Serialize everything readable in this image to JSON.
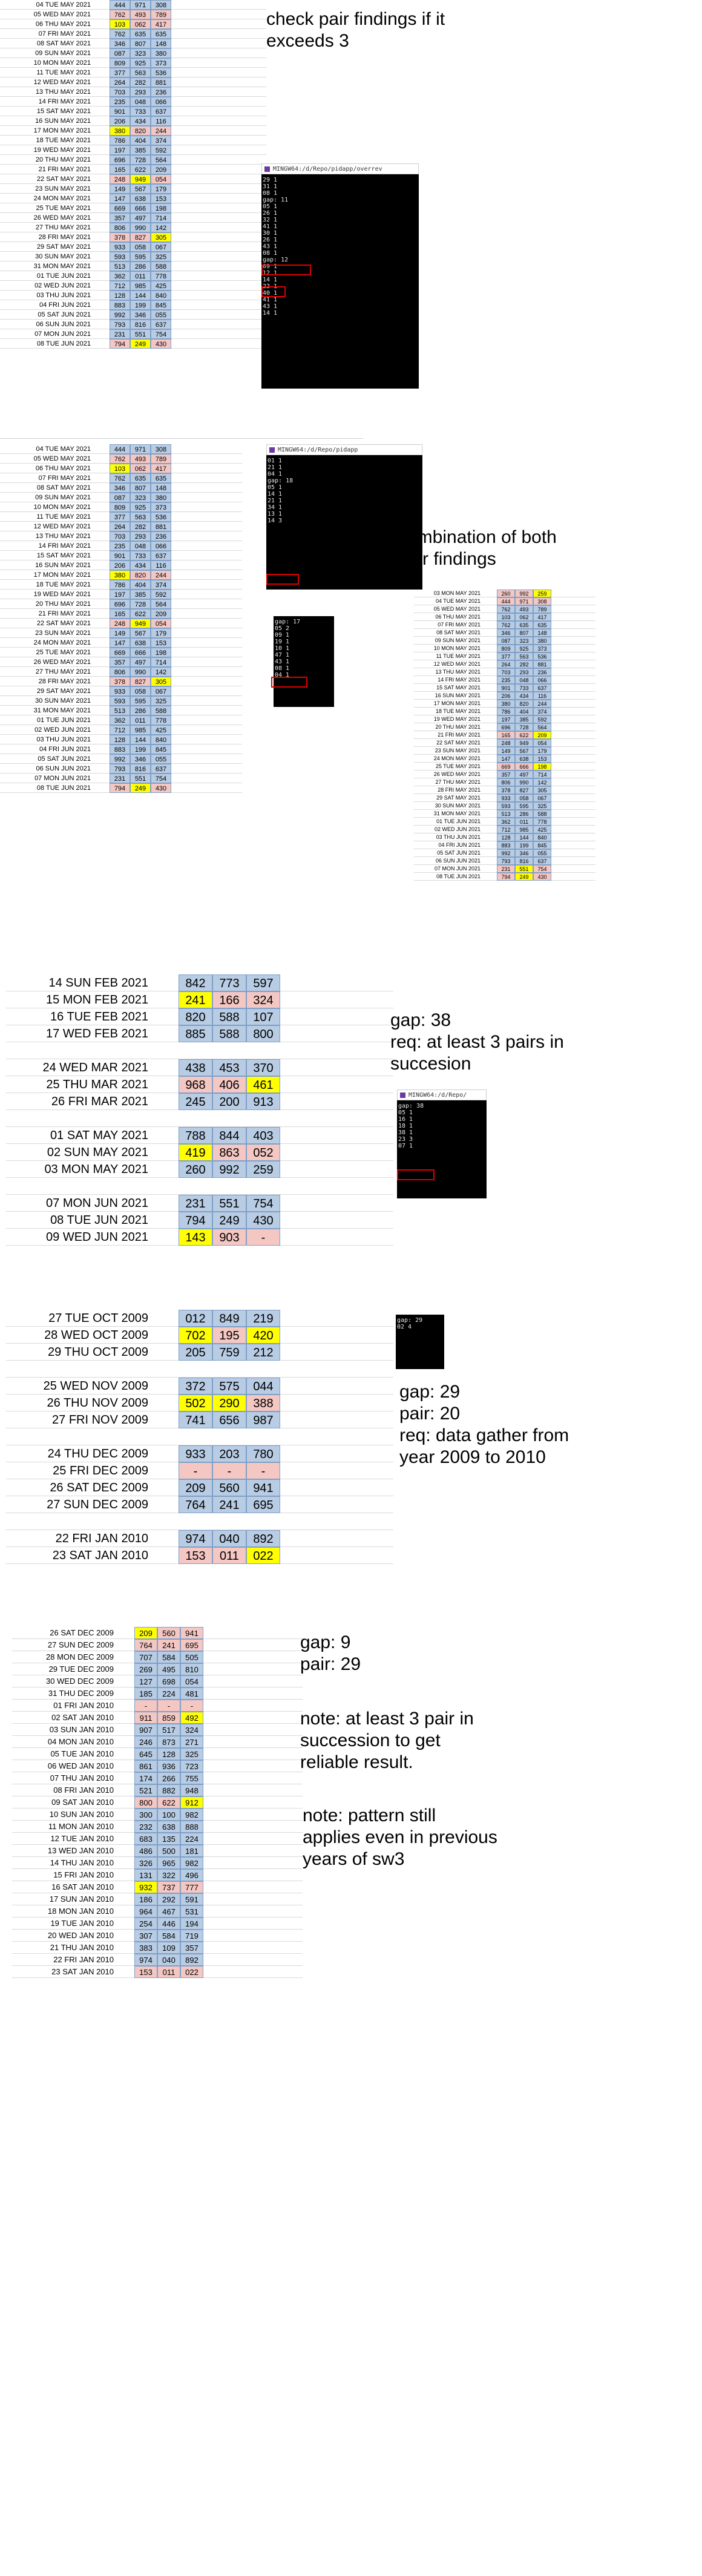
{
  "notes": {
    "n1": "check pair findings if it\nexceeds 3",
    "n2": "combination of both\npair findings",
    "n3": "gap: 38\nreq: at least 3 pairs in\nsuccesion",
    "n4": "gap: 29\npair: 20\nreq: data gather from\nyear 2009 to 2010",
    "n5": "gap: 9\npair: 29",
    "n6": "note: at least 3 pair in\nsuccession to get\nreliable result.",
    "n7": "note: pattern still\napplies even in previous\nyears of sw3"
  },
  "terminals": {
    "t1": {
      "title": "MINGW64:/d/Repo/pidapp/overrev",
      "lines": [
        "29 1",
        "31 1",
        "08 1",
        "",
        "",
        "gap: 11",
        "05 1",
        "26 1",
        "32 1",
        "41 1",
        "30 1",
        "26 1",
        "",
        "",
        "43 1",
        "08 1",
        "",
        "gap: 12",
        "09 1",
        "12 1",
        "14 1",
        "22 1",
        "40 1",
        "41 1",
        "43 1",
        "14 1"
      ]
    },
    "t2": {
      "title": "MINGW64:/d/Repo/pidapp",
      "lines": [
        "01 1",
        "21 1",
        "04 1",
        "",
        "",
        "",
        "gap: 18",
        "05 1",
        "14 1",
        "21 1",
        "34 1",
        "13 1",
        "14 3"
      ]
    },
    "t3": {
      "title": "",
      "lines": [
        "gap: 17",
        "05 2",
        "09 1",
        "19 1",
        "10 1",
        "47 1",
        "43 1",
        "08 1",
        "04 1"
      ]
    },
    "t4": {
      "title": "MINGW64:/d/Repo/",
      "lines": [
        "gap: 38",
        "05 1",
        "16 1",
        "18 1",
        "38 1",
        "23 3",
        "07 1"
      ]
    },
    "t5": {
      "title": "",
      "lines": [
        "gap: 29",
        "02 4"
      ]
    }
  },
  "tables": {
    "A": [
      [
        "04 TUE MAY 2021",
        "444",
        "971",
        "308"
      ],
      [
        "05 WED MAY 2021",
        "762",
        "493",
        "789"
      ],
      [
        "06 THU MAY 2021",
        "103",
        "062",
        "417"
      ],
      [
        "07 FRI MAY 2021",
        "762",
        "635",
        "635"
      ],
      [
        "08 SAT MAY 2021",
        "346",
        "807",
        "148"
      ],
      [
        "09 SUN MAY 2021",
        "087",
        "323",
        "380"
      ],
      [
        "10 MON MAY 2021",
        "809",
        "925",
        "373"
      ],
      [
        "11 TUE MAY 2021",
        "377",
        "563",
        "536"
      ],
      [
        "12 WED MAY 2021",
        "264",
        "282",
        "881"
      ],
      [
        "13 THU MAY 2021",
        "703",
        "293",
        "236"
      ],
      [
        "14 FRI MAY 2021",
        "235",
        "048",
        "066"
      ],
      [
        "15 SAT MAY 2021",
        "901",
        "733",
        "637"
      ],
      [
        "16 SUN MAY 2021",
        "206",
        "434",
        "116"
      ],
      [
        "17 MON MAY 2021",
        "380",
        "820",
        "244"
      ],
      [
        "18 TUE MAY 2021",
        "786",
        "404",
        "374"
      ],
      [
        "19 WED MAY 2021",
        "197",
        "385",
        "592"
      ],
      [
        "20 THU MAY 2021",
        "696",
        "728",
        "564"
      ],
      [
        "21 FRI MAY 2021",
        "165",
        "622",
        "209"
      ],
      [
        "22 SAT MAY 2021",
        "248",
        "949",
        "054"
      ],
      [
        "23 SUN MAY 2021",
        "149",
        "567",
        "179"
      ],
      [
        "24 MON MAY 2021",
        "147",
        "638",
        "153"
      ],
      [
        "25 TUE MAY 2021",
        "669",
        "666",
        "198"
      ],
      [
        "26 WED MAY 2021",
        "357",
        "497",
        "714"
      ],
      [
        "27 THU MAY 2021",
        "806",
        "990",
        "142"
      ],
      [
        "28 FRI MAY 2021",
        "378",
        "827",
        "305"
      ],
      [
        "29 SAT MAY 2021",
        "933",
        "058",
        "067"
      ],
      [
        "30 SUN MAY 2021",
        "593",
        "595",
        "325"
      ],
      [
        "31 MON MAY 2021",
        "513",
        "286",
        "588"
      ],
      [
        "01 TUE JUN 2021",
        "362",
        "011",
        "778"
      ],
      [
        "02 WED JUN 2021",
        "712",
        "985",
        "425"
      ],
      [
        "03 THU JUN 2021",
        "128",
        "144",
        "840"
      ],
      [
        "04 FRI JUN 2021",
        "883",
        "199",
        "845"
      ],
      [
        "05 SAT JUN 2021",
        "992",
        "346",
        "055"
      ],
      [
        "06 SUN JUN 2021",
        "793",
        "816",
        "637"
      ],
      [
        "07 MON JUN 2021",
        "231",
        "551",
        "754"
      ],
      [
        "08 TUE JUN 2021",
        "794",
        "249",
        "430"
      ]
    ],
    "C": [
      [
        "03 MON MAY 2021",
        "260",
        "992",
        "259"
      ],
      [
        "04 TUE MAY 2021",
        "444",
        "971",
        "308"
      ],
      [
        "05 WED MAY 2021",
        "762",
        "493",
        "789"
      ],
      [
        "06 THU MAY 2021",
        "103",
        "062",
        "417"
      ],
      [
        "07 FRI MAY 2021",
        "762",
        "635",
        "635"
      ],
      [
        "08 SAT MAY 2021",
        "346",
        "807",
        "148"
      ],
      [
        "09 SUN MAY 2021",
        "087",
        "323",
        "380"
      ],
      [
        "10 MON MAY 2021",
        "809",
        "925",
        "373"
      ],
      [
        "11 TUE MAY 2021",
        "377",
        "563",
        "536"
      ],
      [
        "12 WED MAY 2021",
        "264",
        "282",
        "881"
      ],
      [
        "13 THU MAY 2021",
        "703",
        "293",
        "236"
      ],
      [
        "14 FRI MAY 2021",
        "235",
        "048",
        "066"
      ],
      [
        "15 SAT MAY 2021",
        "901",
        "733",
        "637"
      ],
      [
        "16 SUN MAY 2021",
        "206",
        "434",
        "116"
      ],
      [
        "17 MON MAY 2021",
        "380",
        "820",
        "244"
      ],
      [
        "18 TUE MAY 2021",
        "786",
        "404",
        "374"
      ],
      [
        "19 WED MAY 2021",
        "197",
        "385",
        "592"
      ],
      [
        "20 THU MAY 2021",
        "696",
        "728",
        "564"
      ],
      [
        "21 FRI MAY 2021",
        "165",
        "622",
        "209"
      ],
      [
        "22 SAT MAY 2021",
        "248",
        "949",
        "054"
      ],
      [
        "23 SUN MAY 2021",
        "149",
        "567",
        "179"
      ],
      [
        "24 MON MAY 2021",
        "147",
        "638",
        "153"
      ],
      [
        "25 TUE MAY 2021",
        "669",
        "666",
        "198"
      ],
      [
        "26 WED MAY 2021",
        "357",
        "497",
        "714"
      ],
      [
        "27 THU MAY 2021",
        "806",
        "990",
        "142"
      ],
      [
        "28 FRI MAY 2021",
        "378",
        "827",
        "305"
      ],
      [
        "29 SAT MAY 2021",
        "933",
        "058",
        "067"
      ],
      [
        "30 SUN MAY 2021",
        "593",
        "595",
        "325"
      ],
      [
        "31 MON MAY 2021",
        "513",
        "286",
        "588"
      ],
      [
        "01 TUE JUN 2021",
        "362",
        "011",
        "778"
      ],
      [
        "02 WED JUN 2021",
        "712",
        "985",
        "425"
      ],
      [
        "03 THU JUN 2021",
        "128",
        "144",
        "840"
      ],
      [
        "04 FRI JUN 2021",
        "883",
        "199",
        "845"
      ],
      [
        "05 SAT JUN 2021",
        "992",
        "346",
        "055"
      ],
      [
        "06 SUN JUN 2021",
        "793",
        "816",
        "637"
      ],
      [
        "07 MON JUN 2021",
        "231",
        "551",
        "754"
      ],
      [
        "08 TUE JUN 2021",
        "794",
        "249",
        "430"
      ]
    ],
    "D": [
      [
        "14 SUN FEB 2021",
        "842",
        "773",
        "597"
      ],
      [
        "15 MON FEB 2021",
        "241",
        "166",
        "324"
      ],
      [
        "16 TUE FEB 2021",
        "820",
        "588",
        "107"
      ],
      [
        "17 WED FEB 2021",
        "885",
        "588",
        "800"
      ],
      [
        "",
        null,
        null,
        null
      ],
      [
        "24 WED MAR 2021",
        "438",
        "453",
        "370"
      ],
      [
        "25 THU MAR 2021",
        "968",
        "406",
        "461"
      ],
      [
        "26 FRI MAR 2021",
        "245",
        "200",
        "913"
      ],
      [
        "",
        null,
        null,
        null
      ],
      [
        "01 SAT MAY 2021",
        "788",
        "844",
        "403"
      ],
      [
        "02 SUN MAY 2021",
        "419",
        "863",
        "052"
      ],
      [
        "03 MON MAY 2021",
        "260",
        "992",
        "259"
      ],
      [
        "",
        null,
        null,
        null
      ],
      [
        "07 MON JUN 2021",
        "231",
        "551",
        "754"
      ],
      [
        "08 TUE JUN 2021",
        "794",
        "249",
        "430"
      ],
      [
        "09 WED JUN 2021",
        "143",
        "903",
        "-"
      ]
    ],
    "E": [
      [
        "27 TUE OCT 2009",
        "012",
        "849",
        "219"
      ],
      [
        "28 WED OCT 2009",
        "702",
        "195",
        "420"
      ],
      [
        "29 THU OCT 2009",
        "205",
        "759",
        "212"
      ],
      [
        "",
        null,
        null,
        null
      ],
      [
        "25 WED NOV 2009",
        "372",
        "575",
        "044"
      ],
      [
        "26 THU NOV 2009",
        "502",
        "290",
        "388"
      ],
      [
        "27 FRI NOV 2009",
        "741",
        "656",
        "987"
      ],
      [
        "",
        null,
        null,
        null
      ],
      [
        "24 THU DEC 2009",
        "933",
        "203",
        "780"
      ],
      [
        "25 FRI DEC 2009",
        "-",
        "-",
        "-"
      ],
      [
        "26 SAT DEC 2009",
        "209",
        "560",
        "941"
      ],
      [
        "27 SUN DEC 2009",
        "764",
        "241",
        "695"
      ],
      [
        "",
        null,
        null,
        null
      ],
      [
        "22 FRI JAN 2010",
        "974",
        "040",
        "892"
      ],
      [
        "23 SAT JAN 2010",
        "153",
        "011",
        "022"
      ]
    ],
    "F": [
      [
        "26 SAT DEC 2009",
        "209",
        "560",
        "941"
      ],
      [
        "27 SUN DEC 2009",
        "764",
        "241",
        "695"
      ],
      [
        "28 MON DEC 2009",
        "707",
        "584",
        "505"
      ],
      [
        "29 TUE DEC 2009",
        "269",
        "495",
        "810"
      ],
      [
        "30 WED DEC 2009",
        "127",
        "698",
        "054"
      ],
      [
        "31 THU DEC 2009",
        "185",
        "224",
        "481"
      ],
      [
        "01 FRI JAN 2010",
        "-",
        "-",
        "-"
      ],
      [
        "02 SAT JAN 2010",
        "911",
        "859",
        "492"
      ],
      [
        "03 SUN JAN 2010",
        "907",
        "517",
        "324"
      ],
      [
        "04 MON JAN 2010",
        "246",
        "873",
        "271"
      ],
      [
        "05 TUE JAN 2010",
        "645",
        "128",
        "325"
      ],
      [
        "06 WED JAN 2010",
        "861",
        "936",
        "723"
      ],
      [
        "07 THU JAN 2010",
        "174",
        "266",
        "755"
      ],
      [
        "08 FRI JAN 2010",
        "521",
        "882",
        "948"
      ],
      [
        "09 SAT JAN 2010",
        "800",
        "622",
        "912"
      ],
      [
        "10 SUN JAN 2010",
        "300",
        "100",
        "982"
      ],
      [
        "11 MON JAN 2010",
        "232",
        "638",
        "888"
      ],
      [
        "12 TUE JAN 2010",
        "683",
        "135",
        "224"
      ],
      [
        "13 WED JAN 2010",
        "486",
        "500",
        "181"
      ],
      [
        "14 THU JAN 2010",
        "326",
        "965",
        "982"
      ],
      [
        "15 FRI JAN 2010",
        "131",
        "322",
        "496"
      ],
      [
        "16 SAT JAN 2010",
        "932",
        "737",
        "777"
      ],
      [
        "17 SUN JAN 2010",
        "186",
        "292",
        "591"
      ],
      [
        "18 MON JAN 2010",
        "964",
        "467",
        "531"
      ],
      [
        "19 TUE JAN 2010",
        "254",
        "446",
        "194"
      ],
      [
        "20 WED JAN 2010",
        "307",
        "584",
        "719"
      ],
      [
        "21 THU JAN 2010",
        "383",
        "109",
        "357"
      ],
      [
        "22 FRI JAN 2010",
        "974",
        "040",
        "892"
      ],
      [
        "23 SAT JAN 2010",
        "153",
        "011",
        "022"
      ]
    ]
  },
  "highlights": {
    "A": {
      "2-1": "y",
      "2-2": "p",
      "2-3": "p",
      "1-1": "p",
      "1-2": "p",
      "1-3": "p",
      "13-1": "y",
      "13-2": "p",
      "13-3": "p",
      "18-1": "p",
      "18-2": "y",
      "18-3": "p",
      "24-1": "p",
      "24-2": "p",
      "24-3": "y",
      "35-1": "p",
      "35-2": "y",
      "35-3": "p"
    },
    "C": {
      "0-1": "p",
      "0-2": "p",
      "0-3": "y",
      "1-1": "p",
      "1-2": "p",
      "1-3": "p",
      "18-1": "p",
      "18-2": "p",
      "18-3": "y",
      "35-1": "p",
      "35-2": "y",
      "35-3": "p",
      "36-1": "p",
      "36-2": "y",
      "36-3": "p",
      "22-1": "p",
      "22-2": "p",
      "22-3": "y"
    },
    "D": {
      "1-1": "y",
      "1-2": "p",
      "1-3": "p",
      "6-1": "p",
      "6-2": "p",
      "6-3": "y",
      "10-1": "y",
      "10-2": "p",
      "10-3": "p",
      "15-1": "y",
      "15-2": "p",
      "15-3": "p"
    },
    "E": {
      "1-1": "y",
      "1-2": "p",
      "1-3": "y",
      "5-1": "y",
      "5-2": "y",
      "5-3": "p",
      "9-1": "p",
      "9-2": "p",
      "9-3": "p",
      "14-1": "p",
      "14-2": "p",
      "14-3": "y"
    },
    "F": {
      "0-1": "y",
      "0-2": "p",
      "0-3": "p",
      "1-1": "p",
      "1-2": "p",
      "1-3": "p",
      "6-1": "p",
      "6-2": "p",
      "6-3": "p",
      "7-1": "p",
      "7-2": "p",
      "7-3": "y",
      "14-1": "p",
      "14-2": "p",
      "14-3": "y",
      "21-1": "y",
      "21-2": "p",
      "21-3": "p",
      "28-1": "p",
      "28-2": "p",
      "28-3": "p"
    }
  }
}
